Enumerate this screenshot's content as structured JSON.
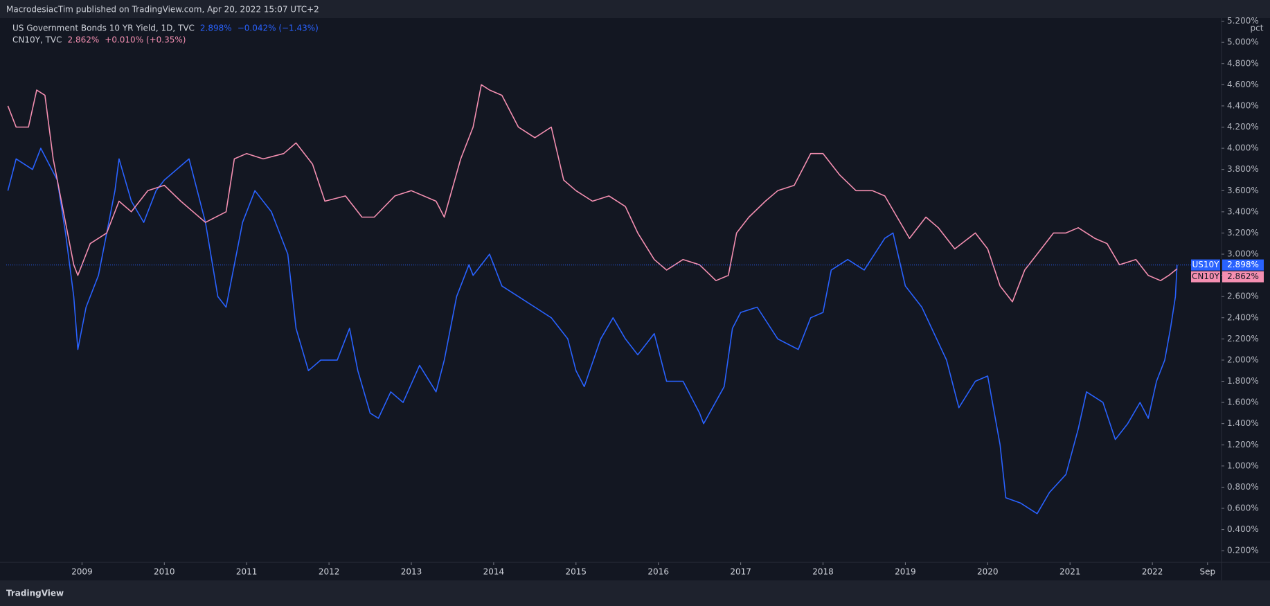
{
  "header": "MacrodesiacTim published on TradingView.com, Apr 20, 2022 15:07 UTC+2",
  "footer": "TradingView",
  "chart_data": {
    "type": "line",
    "y_unit": "pct",
    "legend": [
      {
        "title": "US Government Bonds 10 YR Yield, 1D, TVC",
        "value": "2.898%",
        "change": "−0.042% (−1.43%)",
        "tag": "US10Y"
      },
      {
        "title": "CN10Y, TVC",
        "value": "2.862%",
        "change": "+0.010% (+0.35%)",
        "tag": "CN10Y"
      }
    ],
    "xlim": [
      2008.08,
      2022.84
    ],
    "xticks": [
      2009,
      2010,
      2011,
      2012,
      2013,
      2014,
      2015,
      2016,
      2017,
      2018,
      2019,
      2020,
      2021,
      2022,
      {
        "value": 2022.67,
        "label": "Sep"
      }
    ],
    "ylim": [
      0.09,
      5.23
    ],
    "yticks": [
      {
        "value": 0.2,
        "label": "0.200%"
      },
      {
        "value": 0.4,
        "label": "0.400%"
      },
      {
        "value": 0.6,
        "label": "0.600%"
      },
      {
        "value": 0.8,
        "label": "0.800%"
      },
      {
        "value": 1.0,
        "label": "1.000%"
      },
      {
        "value": 1.2,
        "label": "1.200%"
      },
      {
        "value": 1.4,
        "label": "1.400%"
      },
      {
        "value": 1.6,
        "label": "1.600%"
      },
      {
        "value": 1.8,
        "label": "1.800%"
      },
      {
        "value": 2.0,
        "label": "2.000%"
      },
      {
        "value": 2.2,
        "label": "2.200%"
      },
      {
        "value": 2.4,
        "label": "2.400%"
      },
      {
        "value": 2.6,
        "label": "2.600%"
      },
      {
        "value": 2.8,
        "label": "2.800%"
      },
      {
        "value": 3.0,
        "label": "3.000%"
      },
      {
        "value": 3.2,
        "label": "3.200%"
      },
      {
        "value": 3.4,
        "label": "3.400%"
      },
      {
        "value": 3.6,
        "label": "3.600%"
      },
      {
        "value": 3.8,
        "label": "3.800%"
      },
      {
        "value": 4.0,
        "label": "4.000%"
      },
      {
        "value": 4.2,
        "label": "4.200%"
      },
      {
        "value": 4.4,
        "label": "4.400%"
      },
      {
        "value": 4.6,
        "label": "4.600%"
      },
      {
        "value": 4.8,
        "label": "4.800%"
      },
      {
        "value": 5.0,
        "label": "5.000%"
      },
      {
        "value": 5.2,
        "label": "5.200%"
      }
    ],
    "grid": false,
    "series": [
      {
        "name": "US10Y",
        "color": "#2962ff",
        "x": [
          2008.1,
          2008.2,
          2008.4,
          2008.5,
          2008.7,
          2008.8,
          2008.9,
          2008.95,
          2009.05,
          2009.2,
          2009.4,
          2009.45,
          2009.6,
          2009.75,
          2009.9,
          2010.0,
          2010.3,
          2010.5,
          2010.65,
          2010.75,
          2010.95,
          2011.1,
          2011.3,
          2011.5,
          2011.6,
          2011.75,
          2011.9,
          2012.1,
          2012.25,
          2012.35,
          2012.5,
          2012.6,
          2012.75,
          2012.9,
          2013.1,
          2013.3,
          2013.4,
          2013.55,
          2013.7,
          2013.75,
          2013.95,
          2014.1,
          2014.3,
          2014.5,
          2014.7,
          2014.9,
          2015.0,
          2015.1,
          2015.3,
          2015.45,
          2015.6,
          2015.75,
          2015.95,
          2016.1,
          2016.3,
          2016.5,
          2016.55,
          2016.8,
          2016.9,
          2017.0,
          2017.2,
          2017.45,
          2017.7,
          2017.85,
          2018.0,
          2018.1,
          2018.3,
          2018.5,
          2018.75,
          2018.85,
          2019.0,
          2019.2,
          2019.5,
          2019.65,
          2019.85,
          2020.0,
          2020.15,
          2020.22,
          2020.4,
          2020.6,
          2020.75,
          2020.95,
          2021.1,
          2021.2,
          2021.4,
          2021.55,
          2021.7,
          2021.85,
          2021.95,
          2022.05,
          2022.15,
          2022.22,
          2022.28,
          2022.3
        ],
        "values": [
          3.6,
          3.9,
          3.8,
          4.0,
          3.7,
          3.2,
          2.6,
          2.1,
          2.5,
          2.8,
          3.6,
          3.9,
          3.5,
          3.3,
          3.6,
          3.7,
          3.9,
          3.3,
          2.6,
          2.5,
          3.3,
          3.6,
          3.4,
          3.0,
          2.3,
          1.9,
          2.0,
          2.0,
          2.3,
          1.9,
          1.5,
          1.45,
          1.7,
          1.6,
          1.95,
          1.7,
          2.0,
          2.6,
          2.9,
          2.8,
          3.0,
          2.7,
          2.6,
          2.5,
          2.4,
          2.2,
          1.9,
          1.75,
          2.2,
          2.4,
          2.2,
          2.05,
          2.25,
          1.8,
          1.8,
          1.5,
          1.4,
          1.75,
          2.3,
          2.45,
          2.5,
          2.2,
          2.1,
          2.4,
          2.45,
          2.85,
          2.95,
          2.85,
          3.15,
          3.2,
          2.7,
          2.5,
          2.0,
          1.55,
          1.8,
          1.85,
          1.2,
          0.7,
          0.65,
          0.55,
          0.75,
          0.92,
          1.35,
          1.7,
          1.6,
          1.25,
          1.4,
          1.6,
          1.45,
          1.8,
          2.0,
          2.3,
          2.6,
          2.898
        ]
      },
      {
        "name": "CN10Y",
        "color": "#f48fb1",
        "x": [
          2008.1,
          2008.2,
          2008.35,
          2008.45,
          2008.55,
          2008.65,
          2008.8,
          2008.9,
          2008.95,
          2009.1,
          2009.3,
          2009.45,
          2009.6,
          2009.8,
          2010.0,
          2010.2,
          2010.35,
          2010.5,
          2010.75,
          2010.85,
          2011.0,
          2011.2,
          2011.45,
          2011.6,
          2011.8,
          2011.95,
          2012.2,
          2012.4,
          2012.55,
          2012.8,
          2013.0,
          2013.3,
          2013.4,
          2013.6,
          2013.75,
          2013.85,
          2013.95,
          2014.1,
          2014.3,
          2014.5,
          2014.7,
          2014.85,
          2015.0,
          2015.2,
          2015.4,
          2015.6,
          2015.75,
          2015.95,
          2016.1,
          2016.3,
          2016.5,
          2016.7,
          2016.85,
          2016.95,
          2017.1,
          2017.3,
          2017.45,
          2017.65,
          2017.85,
          2018.0,
          2018.2,
          2018.4,
          2018.6,
          2018.75,
          2018.9,
          2019.05,
          2019.25,
          2019.4,
          2019.6,
          2019.85,
          2020.0,
          2020.15,
          2020.3,
          2020.45,
          2020.6,
          2020.8,
          2020.95,
          2021.1,
          2021.3,
          2021.45,
          2021.6,
          2021.8,
          2021.95,
          2022.1,
          2022.2,
          2022.3
        ],
        "values": [
          4.4,
          4.2,
          4.2,
          4.55,
          4.5,
          3.9,
          3.3,
          2.9,
          2.8,
          3.1,
          3.2,
          3.5,
          3.4,
          3.6,
          3.65,
          3.5,
          3.4,
          3.3,
          3.4,
          3.9,
          3.95,
          3.9,
          3.95,
          4.05,
          3.85,
          3.5,
          3.55,
          3.35,
          3.35,
          3.55,
          3.6,
          3.5,
          3.35,
          3.9,
          4.2,
          4.6,
          4.55,
          4.5,
          4.2,
          4.1,
          4.2,
          3.7,
          3.6,
          3.5,
          3.55,
          3.45,
          3.2,
          2.95,
          2.85,
          2.95,
          2.9,
          2.75,
          2.8,
          3.2,
          3.35,
          3.5,
          3.6,
          3.65,
          3.95,
          3.95,
          3.75,
          3.6,
          3.6,
          3.55,
          3.35,
          3.15,
          3.35,
          3.25,
          3.05,
          3.2,
          3.05,
          2.7,
          2.55,
          2.85,
          3.0,
          3.2,
          3.2,
          3.25,
          3.15,
          3.1,
          2.9,
          2.95,
          2.8,
          2.75,
          2.8,
          2.862
        ]
      }
    ]
  }
}
